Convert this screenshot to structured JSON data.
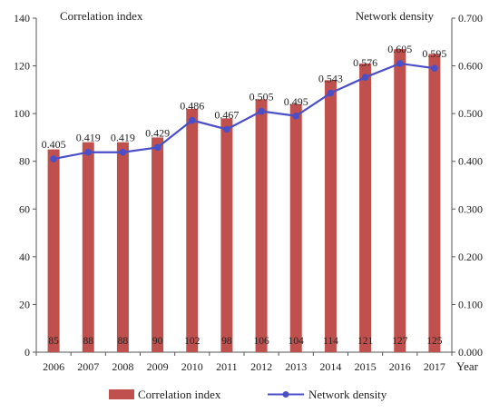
{
  "chart_data": {
    "type": "bar+line",
    "categories": [
      "2006",
      "2007",
      "2008",
      "2009",
      "2010",
      "2011",
      "2012",
      "2013",
      "2014",
      "2015",
      "2016",
      "2017"
    ],
    "series": [
      {
        "name": "Correlation index",
        "type": "bar",
        "axis": "left",
        "values": [
          85,
          88,
          88,
          90,
          102,
          98,
          106,
          104,
          114,
          121,
          127,
          125
        ]
      },
      {
        "name": "Network density",
        "type": "line",
        "axis": "right",
        "values": [
          0.405,
          0.419,
          0.419,
          0.429,
          0.486,
          0.467,
          0.505,
          0.495,
          0.543,
          0.576,
          0.605,
          0.595
        ]
      }
    ],
    "bar_value_labels": [
      "85",
      "88",
      "88",
      "90",
      "102",
      "98",
      "106",
      "104",
      "114",
      "121",
      "127",
      "125"
    ],
    "line_value_labels": [
      "0.405",
      "0.419",
      "0.419",
      "0.429",
      "0.486",
      "0.467",
      "0.505",
      "0.495",
      "0.543",
      "0.576",
      "0.605",
      "0.595"
    ],
    "y_left": {
      "title": "Correlation index",
      "range": [
        0,
        140
      ],
      "ticks": [
        "0",
        "20",
        "40",
        "60",
        "80",
        "100",
        "120",
        "140"
      ]
    },
    "y_right": {
      "title": "Network density",
      "range": [
        0,
        0.7
      ],
      "ticks": [
        "0.000",
        "0.100",
        "0.200",
        "0.300",
        "0.400",
        "0.500",
        "0.600",
        "0.700"
      ]
    },
    "xlabel": "Year",
    "grid": false,
    "legend": {
      "position": "bottom",
      "items": [
        "Correlation index",
        "Network density"
      ]
    },
    "colors": {
      "bar": "#c0504d",
      "line": "#4a4fc8",
      "axis": "#555555"
    }
  }
}
